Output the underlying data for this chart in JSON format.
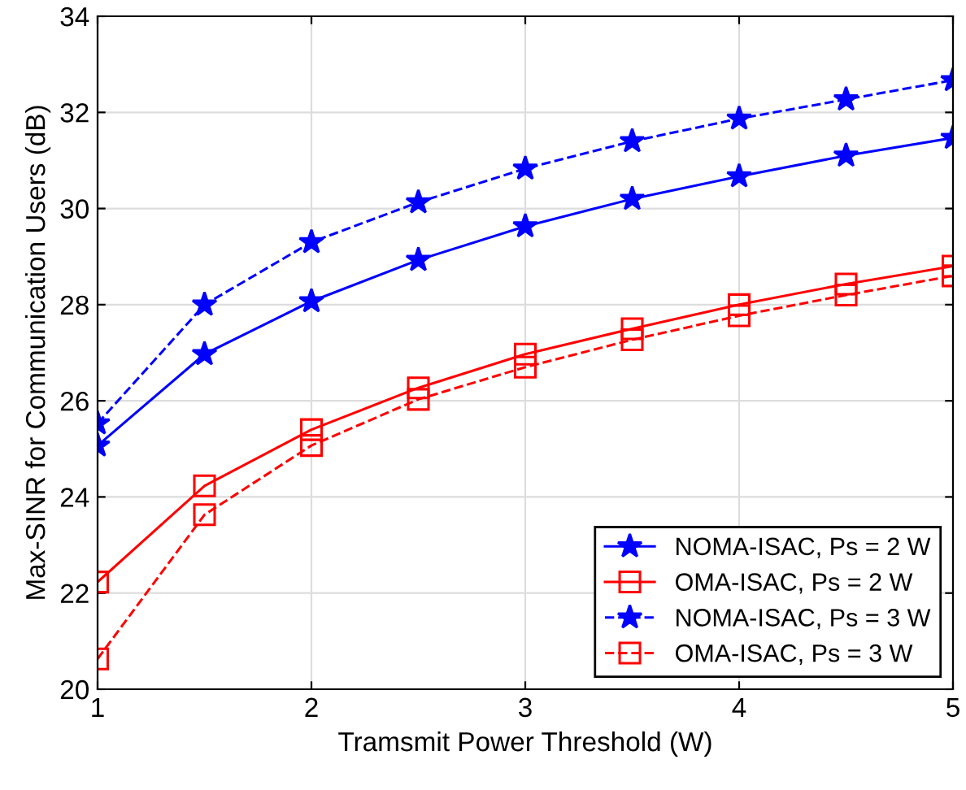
{
  "chart_data": {
    "type": "line",
    "xlabel": "Tramsmit Power Threshold (W)",
    "ylabel": "Max-SINR for Communication Users (dB)",
    "x": [
      1,
      1.5,
      2,
      2.5,
      3,
      3.5,
      4,
      4.5,
      5
    ],
    "series": [
      {
        "name": "NOMA-ISAC, Ps = 2 W",
        "color": "#0000ff",
        "marker": "star",
        "line_style": "solid",
        "values": [
          25.07,
          26.97,
          28.07,
          28.93,
          29.63,
          30.2,
          30.67,
          31.1,
          31.47
        ]
      },
      {
        "name": "OMA-ISAC, Ps = 2 W",
        "color": "#ff0000",
        "marker": "square",
        "line_style": "solid",
        "values": [
          22.23,
          24.23,
          25.4,
          26.27,
          26.97,
          27.5,
          28.0,
          28.43,
          28.8
        ]
      },
      {
        "name": "NOMA-ISAC, Ps = 3 W",
        "color": "#0000ff",
        "marker": "star",
        "line_style": "dashed",
        "values": [
          25.53,
          28.0,
          29.3,
          30.13,
          30.83,
          31.4,
          31.87,
          32.27,
          32.67
        ]
      },
      {
        "name": "OMA-ISAC, Ps = 3 W",
        "color": "#ff0000",
        "marker": "square",
        "line_style": "dashed",
        "values": [
          20.63,
          23.63,
          25.07,
          26.03,
          26.7,
          27.27,
          27.77,
          28.2,
          28.6
        ]
      }
    ],
    "xlim": [
      1,
      5
    ],
    "xticks": [
      1,
      2,
      3,
      4,
      5
    ],
    "ylim": [
      20,
      34
    ],
    "yticks": [
      20,
      22,
      24,
      26,
      28,
      30,
      32,
      34
    ],
    "grid": true,
    "legend": "bottom right"
  }
}
